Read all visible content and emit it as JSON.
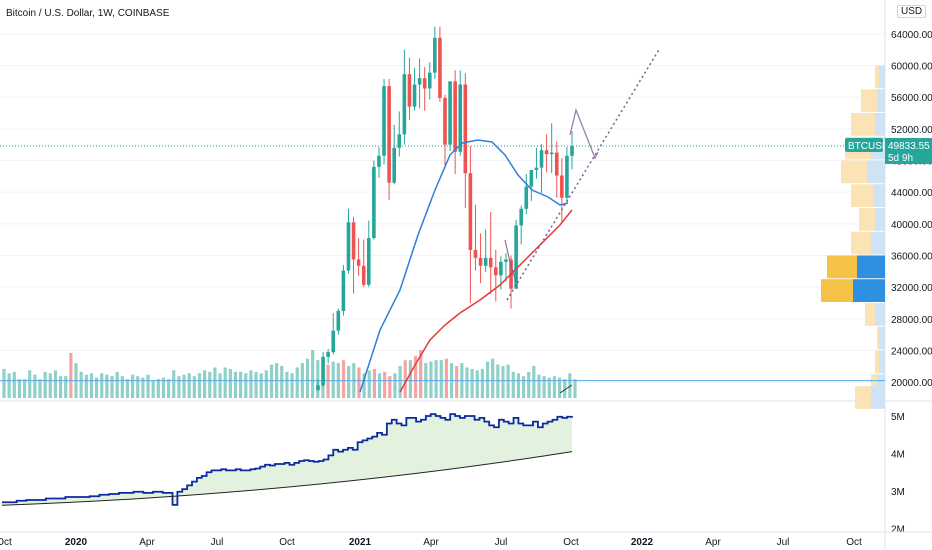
{
  "header": {
    "symbol_title": "Bitcoin / U.S. Dollar, 1W, COINBASE",
    "currency": "USD"
  },
  "price_tag": {
    "symbol": "BTCUSD",
    "price": "49833.55",
    "countdown": "5d 9h"
  },
  "colors": {
    "up": "#26a69a",
    "down": "#ef5350",
    "vol_up": "#8fd0c9",
    "vol_down": "#f5a3a3",
    "ma_blue": "#2f7fd6",
    "ma_red": "#e53935",
    "dark_blue": "#0a2aa0",
    "fill_green": "#e3f2df",
    "grid": "#f0f3fa"
  },
  "chart_data": {
    "type": "candlestick",
    "price_axis_ticks": [
      "64000.00",
      "60000.00",
      "56000.00",
      "52000.00",
      "48000.00",
      "44000.00",
      "40000.00",
      "36000.00",
      "32000.00",
      "28000.00",
      "24000.00",
      "20000.00"
    ],
    "price_ylim": [
      18000,
      66000
    ],
    "lower_axis_ticks": [
      "5M",
      "4M",
      "3M",
      "2M"
    ],
    "time_axis_labels": [
      "Oct",
      "2020",
      "Apr",
      "Jul",
      "Oct",
      "2021",
      "Apr",
      "Jul",
      "Oct",
      "2022",
      "Apr",
      "Jul",
      "Oct"
    ],
    "last_price": 49833.55,
    "candles": [
      [
        19000,
        20300,
        18900,
        19600
      ],
      [
        19600,
        23800,
        19400,
        23200
      ],
      [
        23200,
        24200,
        22400,
        23800
      ],
      [
        23800,
        28700,
        23500,
        26500
      ],
      [
        26500,
        29300,
        26000,
        29000
      ],
      [
        29000,
        34800,
        28400,
        34100
      ],
      [
        34100,
        41900,
        33700,
        40200
      ],
      [
        40200,
        40900,
        31200,
        35500
      ],
      [
        35500,
        38200,
        33400,
        34700
      ],
      [
        34700,
        38000,
        32000,
        32300
      ],
      [
        32300,
        40400,
        32000,
        38200
      ],
      [
        38200,
        48000,
        38000,
        47200
      ],
      [
        47200,
        49700,
        45800,
        48600
      ],
      [
        48600,
        58300,
        47500,
        57400
      ],
      [
        57400,
        58300,
        43000,
        45200
      ],
      [
        45200,
        52500,
        45000,
        49600
      ],
      [
        49600,
        54200,
        48500,
        51300
      ],
      [
        51300,
        62000,
        50000,
        58900
      ],
      [
        58900,
        61000,
        53100,
        54800
      ],
      [
        54800,
        59700,
        54300,
        57600
      ],
      [
        57600,
        60900,
        54600,
        58400
      ],
      [
        58400,
        59800,
        54300,
        57100
      ],
      [
        57100,
        60400,
        55700,
        59100
      ],
      [
        59100,
        64900,
        58300,
        63500
      ],
      [
        63500,
        64900,
        55400,
        55900
      ],
      [
        55900,
        56300,
        47000,
        50000
      ],
      [
        50000,
        58000,
        49200,
        58000
      ],
      [
        58000,
        59400,
        46300,
        49100
      ],
      [
        49100,
        59400,
        48600,
        57600
      ],
      [
        57600,
        59000,
        42000,
        46400
      ],
      [
        46400,
        49800,
        30000,
        36700
      ],
      [
        36700,
        42400,
        34100,
        35700
      ],
      [
        35700,
        38800,
        32500,
        34700
      ],
      [
        34700,
        39300,
        33900,
        35700
      ],
      [
        35700,
        41500,
        31100,
        34500
      ],
      [
        34500,
        36700,
        30200,
        33500
      ],
      [
        33500,
        35900,
        31700,
        35200
      ],
      [
        35200,
        36300,
        32700,
        35500
      ],
      [
        35500,
        36000,
        29300,
        31800
      ],
      [
        31800,
        40500,
        31800,
        39800
      ],
      [
        39800,
        42300,
        37400,
        41900
      ],
      [
        41900,
        46300,
        41200,
        44700
      ],
      [
        44700,
        46600,
        42900,
        46800
      ],
      [
        46800,
        49600,
        45700,
        47100
      ],
      [
        47100,
        50100,
        43900,
        49300
      ],
      [
        49300,
        51300,
        46500,
        48800
      ],
      [
        48800,
        52700,
        46400,
        49000
      ],
      [
        49000,
        50400,
        43300,
        46100
      ],
      [
        46100,
        48300,
        40100,
        43300
      ],
      [
        43300,
        49700,
        42700,
        48600
      ],
      [
        48600,
        51700,
        46900,
        49833
      ]
    ],
    "volume": [
      20000,
      17000,
      18000,
      13000,
      13000,
      19000,
      16000,
      13000,
      18000,
      17000,
      19000,
      15000,
      15000,
      31000,
      24000,
      18000,
      16000,
      17000,
      14000,
      17000,
      16000,
      15000,
      18000,
      15000,
      13000,
      16000,
      15000,
      14000,
      16000,
      12000,
      13000,
      14000,
      13000,
      19000,
      15000,
      16000,
      17000,
      15000,
      17000,
      19000,
      18000,
      21000,
      17000,
      21000,
      20000,
      18000,
      18000,
      17000,
      19000,
      18000,
      17000,
      19000,
      23000,
      24000,
      22000,
      18000,
      17000,
      21000,
      24000,
      27000,
      33000,
      26000,
      24000,
      23000,
      25000,
      24000,
      26000,
      22000,
      24000,
      21000,
      17000,
      19000,
      20000,
      17000,
      18000,
      15000,
      17000,
      22000,
      26000,
      26000,
      29000,
      33000,
      24000,
      25000,
      26000,
      26000,
      27000,
      24000,
      22000,
      24000,
      21000,
      20000,
      19000,
      20000,
      25000,
      27000,
      23000,
      22000,
      23000,
      18000,
      17000,
      15000,
      18000,
      22000,
      16000,
      15000,
      14000,
      15000,
      14000,
      13000,
      17000,
      13000
    ],
    "lower_line": [
      2.7,
      2.7,
      2.7,
      2.74,
      2.74,
      2.76,
      2.76,
      2.76,
      2.76,
      2.8,
      2.8,
      2.8,
      2.8,
      2.84,
      2.84,
      2.84,
      2.84,
      2.84,
      2.86,
      2.86,
      2.9,
      2.9,
      2.92,
      2.92,
      2.95,
      2.95,
      2.95,
      2.98,
      2.98,
      2.95,
      2.95,
      2.98,
      2.98,
      2.95,
      2.95,
      2.63,
      2.98,
      3.05,
      3.15,
      3.25,
      3.35,
      3.4,
      3.5,
      3.55,
      3.55,
      3.58,
      3.55,
      3.55,
      3.58,
      3.55,
      3.55,
      3.58,
      3.6,
      3.65,
      3.7,
      3.68,
      3.72,
      3.72,
      3.75,
      3.7,
      3.75,
      3.8,
      3.82,
      3.8,
      3.78,
      3.8,
      3.84,
      3.95,
      4.1,
      4.05,
      4.1,
      4.15,
      4.1,
      4.3,
      4.35,
      4.4,
      4.45,
      4.55,
      4.5,
      4.8,
      4.9,
      4.8,
      4.75,
      4.95,
      4.95,
      4.85,
      4.9,
      5.0,
      5.05,
      5.0,
      4.95,
      4.9,
      5.05,
      5.0,
      4.95,
      5.0,
      5.0,
      4.9,
      4.95,
      4.85,
      4.75,
      4.7,
      4.9,
      4.85,
      4.8,
      4.95,
      4.8,
      4.75,
      4.75,
      4.85,
      4.7,
      4.8,
      4.85,
      4.9,
      4.98,
      4.95,
      4.98,
      5.0
    ]
  }
}
